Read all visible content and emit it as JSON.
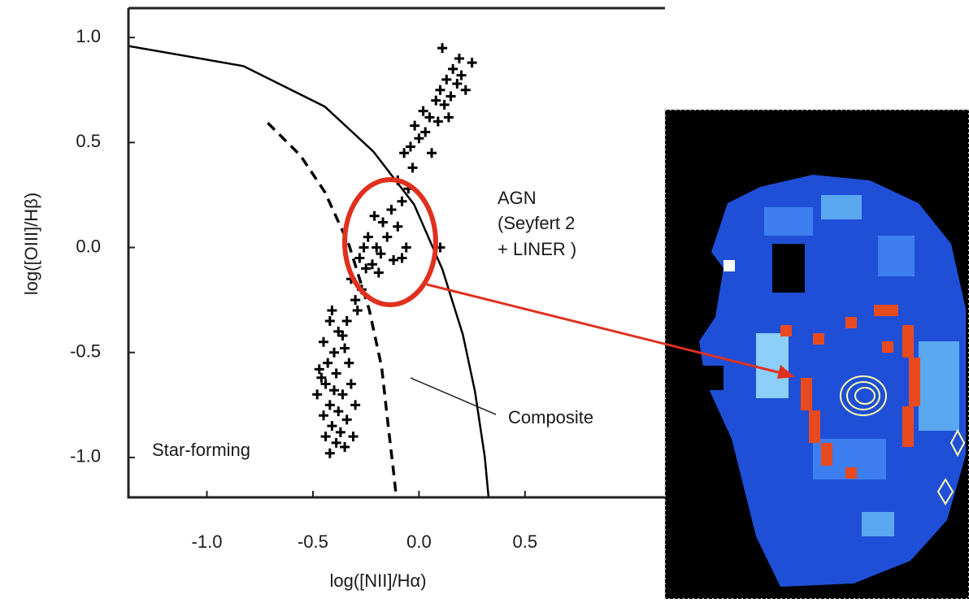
{
  "chart_data": {
    "type": "scatter",
    "xlabel": "log([NII]/Hα)",
    "ylabel": "log([OIII]/Hβ)",
    "xlim": [
      -1.37,
      1.16
    ],
    "ylim": [
      -1.19,
      1.14
    ],
    "xticks": [
      {
        "value": -1.0,
        "label": "-1.0"
      },
      {
        "value": -0.5,
        "label": "-0.5"
      },
      {
        "value": 0.0,
        "label": "0.0"
      },
      0.5
    ],
    "yticks": [
      {
        "value": -1.0,
        "label": "-1.0"
      },
      {
        "value": -0.5,
        "label": "-0.5"
      },
      {
        "value": 0.0,
        "label": "0.0"
      },
      0.5,
      {
        "value": 1.0,
        "label": "1.0"
      }
    ],
    "color": "#000000",
    "points": {
      "x": [
        -0.42,
        -0.38,
        -0.45,
        -0.4,
        -0.35,
        -0.43,
        -0.47,
        -0.39,
        -0.33,
        -0.44,
        -0.4,
        -0.36,
        -0.48,
        -0.42,
        -0.38,
        -0.45,
        -0.34,
        -0.41,
        -0.37,
        -0.44,
        -0.39,
        -0.35,
        -0.42,
        -0.31,
        -0.46,
        -0.32,
        -0.3,
        -0.36,
        -0.41,
        -0.34,
        -0.3,
        -0.27,
        -0.32,
        -0.25,
        -0.28,
        -0.22,
        -0.2,
        -0.24,
        -0.18,
        -0.15,
        -0.12,
        -0.08,
        -0.17,
        -0.21,
        -0.13,
        -0.26,
        -0.1,
        -0.06,
        0.1,
        -0.29,
        -0.19,
        -0.08,
        -0.05,
        -0.1,
        -0.03,
        -0.07,
        0.0,
        -0.02,
        0.03,
        0.05,
        0.02,
        0.08,
        0.1,
        0.12,
        0.15,
        0.18,
        0.13,
        0.16,
        0.2,
        0.22,
        0.19,
        0.25,
        0.14,
        0.09,
        -0.04,
        0.06,
        0.11
      ],
      "y": [
        -0.35,
        -0.4,
        -0.45,
        -0.5,
        -0.48,
        -0.55,
        -0.58,
        -0.6,
        -0.55,
        -0.65,
        -0.68,
        -0.7,
        -0.7,
        -0.75,
        -0.78,
        -0.8,
        -0.82,
        -0.85,
        -0.88,
        -0.9,
        -0.93,
        -0.95,
        -0.98,
        -0.9,
        -0.62,
        -0.65,
        -0.75,
        -0.42,
        -0.3,
        -0.35,
        -0.25,
        -0.2,
        -0.15,
        -0.1,
        -0.05,
        -0.08,
        0.0,
        0.05,
        -0.03,
        0.05,
        -0.06,
        -0.05,
        0.12,
        0.15,
        0.18,
        0.0,
        0.1,
        0.0,
        0.0,
        -0.3,
        -0.12,
        0.22,
        0.28,
        0.32,
        0.38,
        0.45,
        0.52,
        0.58,
        0.55,
        0.62,
        0.65,
        0.7,
        0.75,
        0.68,
        0.72,
        0.78,
        0.8,
        0.85,
        0.82,
        0.75,
        0.9,
        0.88,
        0.62,
        0.6,
        0.48,
        0.45,
        0.95
      ]
    },
    "curves": [
      {
        "style": "solid",
        "x": [
          -1.372,
          -0.828,
          -0.444,
          -0.215,
          -0.023,
          0.111,
          0.207,
          0.264,
          0.31,
          0.328
        ],
        "y": [
          0.96,
          0.864,
          0.671,
          0.457,
          0.205,
          -0.105,
          -0.415,
          -0.686,
          -0.996,
          -1.19
        ]
      },
      {
        "style": "dashed",
        "x": [
          -0.713,
          -0.559,
          -0.444,
          -0.33,
          -0.234,
          -0.176,
          -0.146,
          -0.119,
          -0.107
        ],
        "y": [
          0.593,
          0.438,
          0.264,
          0.012,
          -0.298,
          -0.57,
          -0.841,
          -1.074,
          -1.19
        ]
      }
    ],
    "annotations": [
      "AGN",
      "(Seyfert 2",
      "+ LINER )",
      "Composite",
      "Star-forming"
    ]
  }
}
